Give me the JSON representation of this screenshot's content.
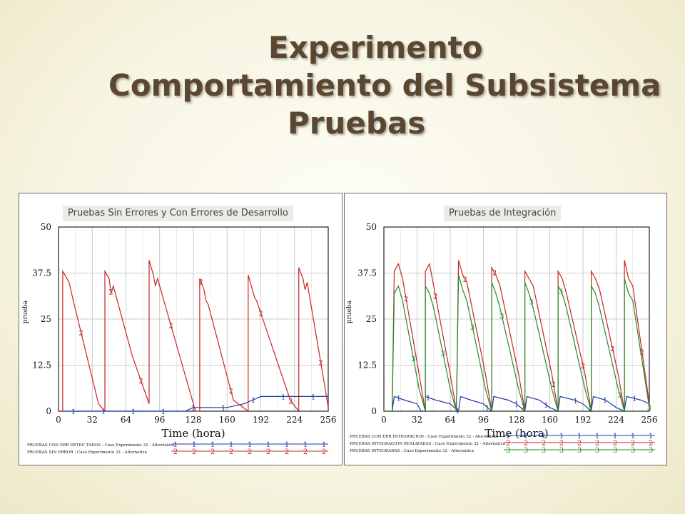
{
  "slide": {
    "title_lines": [
      "Experimento",
      "Comportamiento del  Subsistema",
      "Pruebas"
    ]
  },
  "colors": {
    "red": "#c62424",
    "blue": "#1f3aa8",
    "green": "#238a23",
    "title": "#5b4630"
  },
  "chart_data": [
    {
      "type": "line",
      "title": "Pruebas Sin Errores y Con Errores de Desarrollo",
      "xlabel": "Time (hora)",
      "ylabel": "prueba",
      "xlim": [
        0,
        256
      ],
      "ylim": [
        0,
        50
      ],
      "x_ticks": [
        0,
        32,
        64,
        96,
        128,
        160,
        192,
        224,
        256
      ],
      "y_ticks": [
        0,
        12.5,
        25,
        37.5,
        50
      ],
      "x_tick_labels": [
        "0",
        "32",
        "64",
        "96",
        "128",
        "160",
        "192",
        "224",
        "256"
      ],
      "y_tick_labels": [
        "0",
        "12.5",
        "25",
        "37.5",
        "50"
      ],
      "grid": true,
      "legend_position": "bottom",
      "series": [
        {
          "name": "PRUEBAS CON ERR DETEC TADOS : Caso Experimento 32 - Alternativa",
          "marker": "1",
          "color": "#1f3aa8",
          "x": [
            0,
            60,
            64,
            120,
            128,
            160,
            176,
            192,
            256
          ],
          "y": [
            0,
            0,
            0,
            0,
            1,
            1,
            2,
            4,
            4
          ]
        },
        {
          "name": "PRUEBAS SIN ERROR : Caso Experimento 32 - Alternativa",
          "marker": "2",
          "color": "#c62424",
          "x": [
            0,
            4,
            4,
            10,
            14,
            38,
            44,
            44,
            48,
            50,
            52,
            70,
            86,
            86,
            90,
            92,
            94,
            130,
            134,
            134,
            138,
            140,
            142,
            166,
            180,
            180,
            184,
            186,
            188,
            220,
            228,
            228,
            232,
            234,
            236,
            252,
            256
          ],
          "y": [
            0,
            0,
            38,
            35,
            30,
            2,
            0,
            38,
            36,
            32,
            34,
            15,
            2,
            41,
            37,
            34,
            36,
            0,
            0,
            36,
            33,
            30,
            29,
            3,
            0,
            37,
            33,
            31,
            30,
            3,
            0,
            39,
            36,
            33,
            35,
            8,
            1
          ]
        }
      ]
    },
    {
      "type": "line",
      "title": "Pruebas de Integración",
      "xlabel": "Time (hora)",
      "ylabel": "prueba",
      "xlim": [
        0,
        256
      ],
      "ylim": [
        0,
        50
      ],
      "x_ticks": [
        0,
        32,
        64,
        96,
        128,
        160,
        192,
        224,
        256
      ],
      "y_ticks": [
        0,
        12.5,
        25,
        37.5,
        50
      ],
      "x_tick_labels": [
        "0",
        "32",
        "64",
        "96",
        "128",
        "160",
        "192",
        "224",
        "256"
      ],
      "y_tick_labels": [
        "0",
        "12.5",
        "25",
        "37.5",
        "50"
      ],
      "grid": true,
      "legend_position": "bottom",
      "series": [
        {
          "name": "PRUEBAS CON ERR INTEGRACION : Caso Experimento 32 - Alternativa",
          "marker": "1",
          "color": "#1f3aa8",
          "x": [
            0,
            8,
            10,
            20,
            32,
            36,
            40,
            40,
            50,
            64,
            72,
            74,
            84,
            96,
            104,
            106,
            120,
            128,
            136,
            138,
            150,
            160,
            168,
            170,
            184,
            192,
            200,
            202,
            214,
            224,
            232,
            234,
            248,
            256
          ],
          "y": [
            0,
            0,
            4,
            3,
            2,
            0,
            0,
            4,
            3,
            2,
            0,
            4,
            3,
            2,
            0,
            4,
            3,
            2,
            0,
            4,
            3,
            1,
            0,
            4,
            3,
            2,
            0,
            4,
            3,
            1,
            0,
            4,
            3,
            2
          ]
        },
        {
          "name": "PRUEBAS INTEGRACION REALIZADAS : Caso Experimento 32 - Alternativa",
          "marker": "2",
          "color": "#c62424",
          "x": [
            0,
            8,
            10,
            14,
            18,
            34,
            40,
            40,
            44,
            48,
            64,
            70,
            72,
            76,
            80,
            98,
            104,
            104,
            108,
            112,
            130,
            136,
            136,
            140,
            144,
            162,
            168,
            168,
            172,
            176,
            194,
            200,
            200,
            204,
            208,
            226,
            232,
            232,
            236,
            240,
            256
          ],
          "y": [
            0,
            0,
            38,
            40,
            36,
            10,
            0,
            38,
            40,
            34,
            10,
            0,
            41,
            37,
            35,
            10,
            0,
            39,
            37,
            34,
            10,
            0,
            38,
            36,
            34,
            10,
            0,
            38,
            36,
            32,
            10,
            0,
            38,
            36,
            33,
            10,
            0,
            41,
            36,
            34,
            2
          ]
        },
        {
          "name": "PRUEBAS INTEGRADAS : Caso Experimento 32 - Alternativa",
          "marker": "3",
          "color": "#238a23",
          "x": [
            0,
            8,
            10,
            14,
            18,
            34,
            40,
            40,
            44,
            48,
            64,
            70,
            72,
            76,
            80,
            98,
            104,
            104,
            108,
            112,
            130,
            136,
            136,
            140,
            144,
            162,
            168,
            168,
            172,
            176,
            194,
            200,
            200,
            204,
            208,
            226,
            232,
            232,
            236,
            240,
            256
          ],
          "y": [
            0,
            0,
            32,
            34,
            30,
            6,
            0,
            34,
            32,
            28,
            6,
            0,
            37,
            33,
            30,
            6,
            0,
            35,
            32,
            28,
            6,
            0,
            35,
            32,
            28,
            6,
            0,
            34,
            32,
            28,
            6,
            0,
            34,
            32,
            28,
            6,
            0,
            36,
            32,
            30,
            1
          ]
        }
      ]
    }
  ]
}
